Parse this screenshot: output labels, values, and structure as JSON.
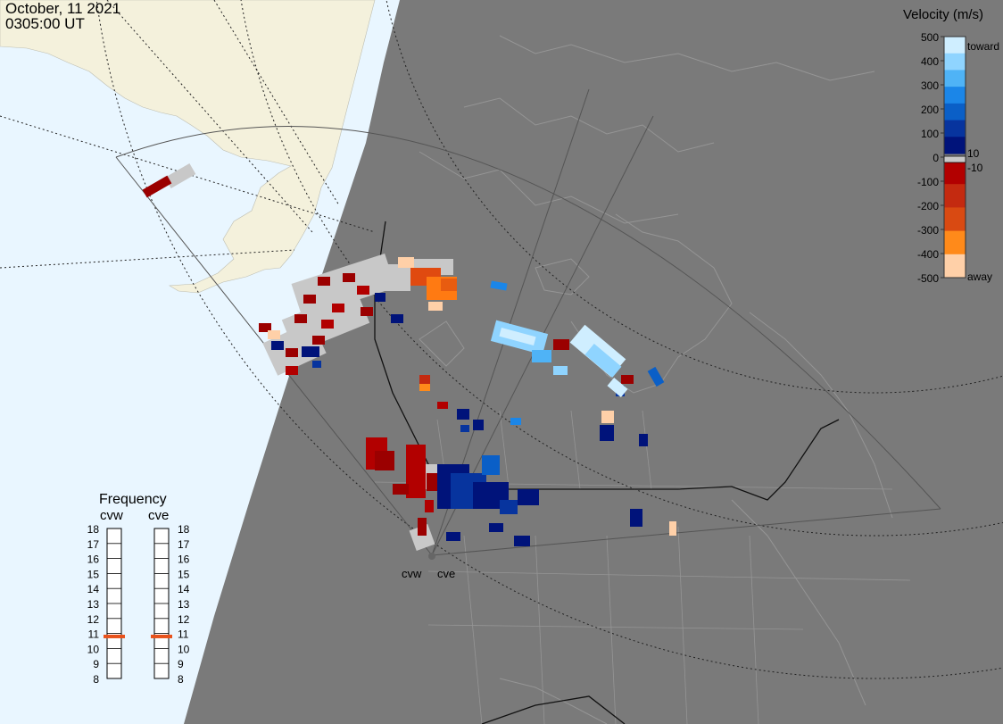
{
  "header": {
    "date": "October, 11 2021",
    "time": "0305:00 UT"
  },
  "colorbar": {
    "title": "Velocity (m/s)",
    "ticks": [
      "500",
      "400",
      "300",
      "200",
      "100",
      "0",
      "-100",
      "-200",
      "-300",
      "-400",
      "-500"
    ],
    "extra_labels": {
      "toward": "toward",
      "pos10": "10",
      "neg10": "-10",
      "away": "away"
    },
    "colors_top_to_bottom": [
      "#cfeeff",
      "#8fd4ff",
      "#4fb3f6",
      "#1b86e8",
      "#0a5fc7",
      "#07349e",
      "#00137a",
      "#b20000",
      "#c42a10",
      "#d94a12",
      "#ff8a1a",
      "#ffd0a8"
    ]
  },
  "frequency": {
    "title": "Frequency",
    "radars": [
      {
        "name": "cvw",
        "selected_mhz": 10.8
      },
      {
        "name": "cve",
        "selected_mhz": 10.8
      }
    ],
    "scale": [
      "18",
      "17",
      "16",
      "15",
      "14",
      "13",
      "12",
      "11",
      "10",
      "9",
      "8"
    ],
    "marker_color": "#e8521c"
  },
  "radar_labels": {
    "cvw": "cvw",
    "cve": "cve"
  },
  "colors": {
    "night": "#7a7a7a",
    "ocean_day": "#e9f6ff",
    "land_day": "#f4f1dc",
    "coast_night": "#9a9a9a",
    "ground_scatter": "#c8c8c8"
  }
}
